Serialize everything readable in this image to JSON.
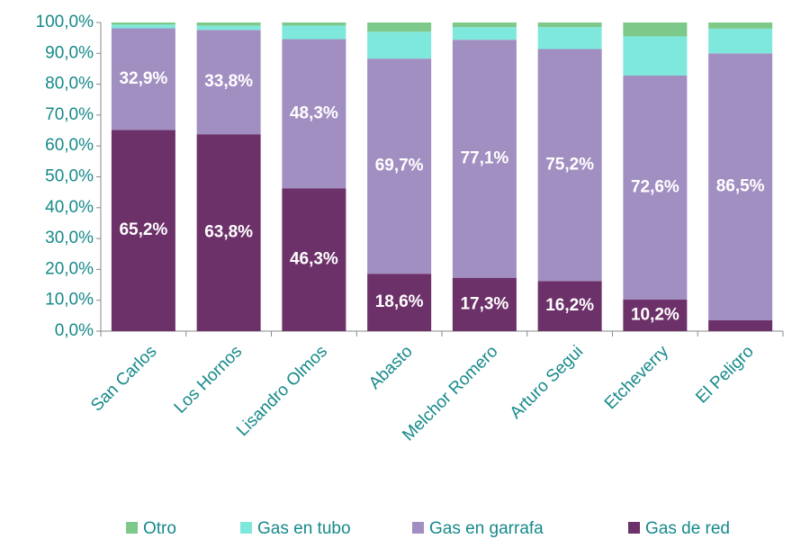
{
  "chart_data": {
    "type": "stacked_bar",
    "categories": [
      "San Carlos",
      "Los Hornos",
      "Lisandro Olmos",
      "Abasto",
      "Melchor Romero",
      "Arturo Segui",
      "Etcheverry",
      "El Peligro"
    ],
    "series": [
      {
        "name": "Otro",
        "color": "#7dc98a",
        "values": [
          0.7,
          1.0,
          1.0,
          3.0,
          1.5,
          1.5,
          4.5,
          2.0
        ]
      },
      {
        "name": "Gas en tubo",
        "color": "#7fe8dc",
        "values": [
          1.2,
          1.4,
          4.4,
          8.7,
          4.1,
          7.1,
          12.7,
          8.0
        ]
      },
      {
        "name": "Gas en garrafa",
        "color": "#a28fc2",
        "values": [
          32.9,
          33.8,
          48.3,
          69.7,
          77.1,
          75.2,
          72.6,
          86.5
        ],
        "value_labels": [
          "32,9%",
          "33,8%",
          "48,3%",
          "69,7%",
          "77,1%",
          "75,2%",
          "72,6%",
          "86,5%"
        ]
      },
      {
        "name": "Gas de red",
        "color": "#6c3169",
        "values": [
          65.2,
          63.8,
          46.3,
          18.6,
          17.3,
          16.2,
          10.2,
          3.5
        ],
        "value_labels": [
          "65,2%",
          "63,8%",
          "46,3%",
          "18,6%",
          "17,3%",
          "16,2%",
          "10,2%",
          null
        ]
      }
    ],
    "ylim": [
      0,
      100
    ],
    "yticks": [
      {
        "value": 0,
        "label": "0,0%"
      },
      {
        "value": 10,
        "label": "10,0%"
      },
      {
        "value": 20,
        "label": "20,0%"
      },
      {
        "value": 30,
        "label": "30,0%"
      },
      {
        "value": 40,
        "label": "40,0%"
      },
      {
        "value": 50,
        "label": "50,0%"
      },
      {
        "value": 60,
        "label": "60,0%"
      },
      {
        "value": 70,
        "label": "70,0%"
      },
      {
        "value": 80,
        "label": "80,0%"
      },
      {
        "value": 90,
        "label": "90,0%"
      },
      {
        "value": 100,
        "label": "100,0%"
      }
    ],
    "legend": "bottom"
  }
}
